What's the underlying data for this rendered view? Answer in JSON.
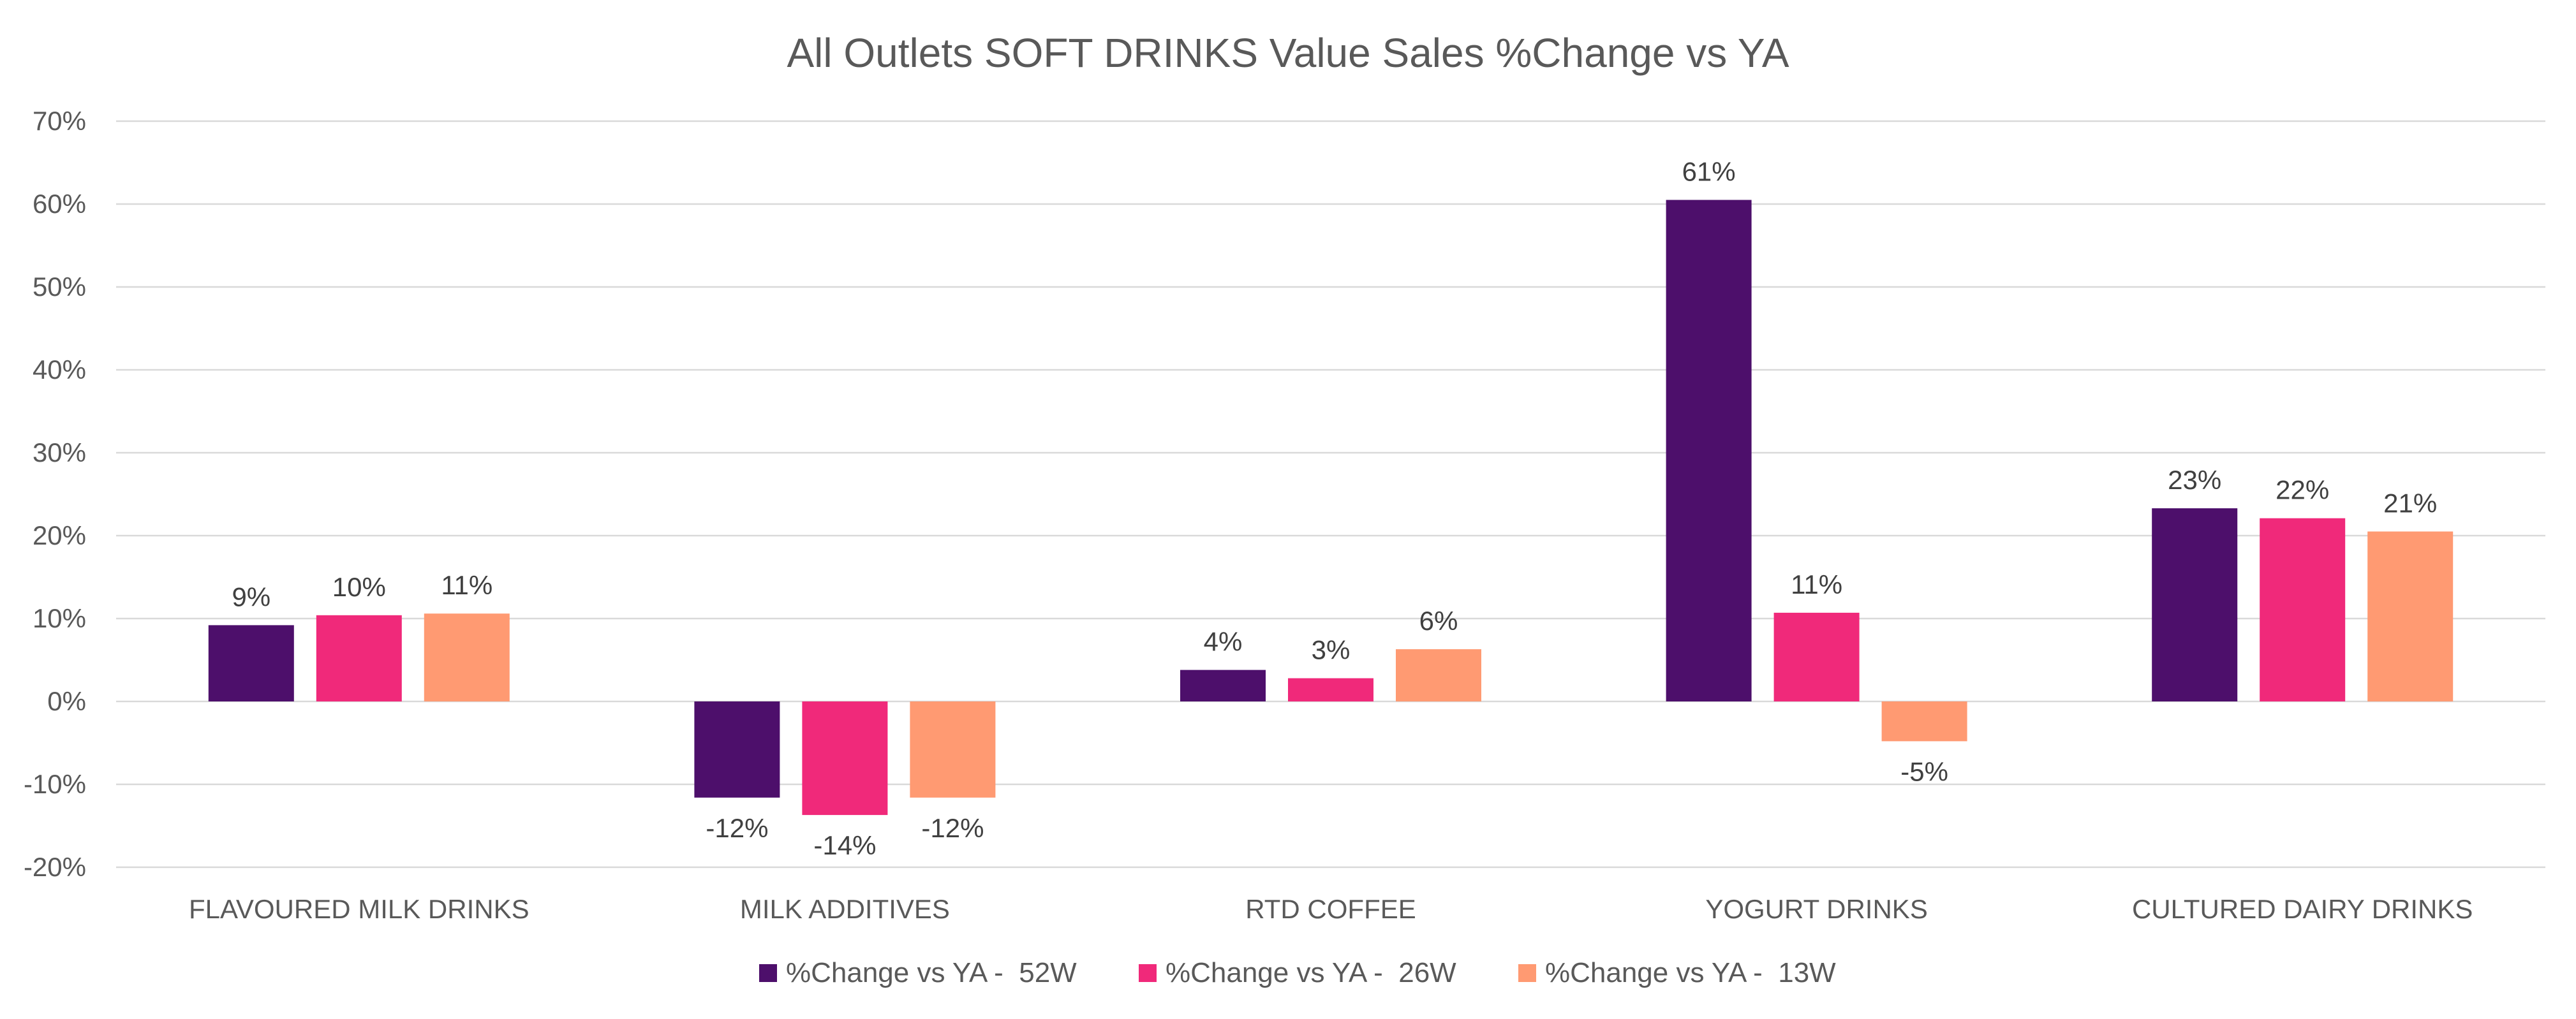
{
  "chart_data": {
    "type": "bar",
    "title": "All Outlets SOFT DRINKS Value Sales %Change vs YA",
    "xlabel": "",
    "ylabel": "",
    "ylim": [
      -20,
      70
    ],
    "yticks": [
      70,
      60,
      50,
      40,
      30,
      20,
      10,
      0,
      -10,
      -20
    ],
    "ytick_labels": [
      "70%",
      "60%",
      "50%",
      "40%",
      "30%",
      "20%",
      "10%",
      "0%",
      "-10%",
      "-20%"
    ],
    "grid": true,
    "legend_position": "bottom",
    "categories": [
      "FLAVOURED MILK DRINKS",
      "MILK ADDITIVES",
      "RTD COFFEE",
      "YOGURT DRINKS",
      "CULTURED DAIRY DRINKS"
    ],
    "series": [
      {
        "name": "%Change vs YA -  52W",
        "color": "#4d0f6b",
        "values": [
          9.2,
          -11.6,
          3.8,
          60.5,
          23.3
        ],
        "labels": [
          "9%",
          "-12%",
          "4%",
          "61%",
          "23%"
        ]
      },
      {
        "name": "%Change vs YA -  26W",
        "color": "#f0297a",
        "values": [
          10.4,
          -13.7,
          2.8,
          10.7,
          22.1
        ],
        "labels": [
          "10%",
          "-14%",
          "3%",
          "11%",
          "22%"
        ]
      },
      {
        "name": "%Change vs YA -  13W",
        "color": "#ff9a72",
        "values": [
          10.6,
          -11.6,
          6.3,
          -4.8,
          20.5
        ],
        "labels": [
          "11%",
          "-12%",
          "6%",
          "-5%",
          "21%"
        ]
      }
    ]
  }
}
